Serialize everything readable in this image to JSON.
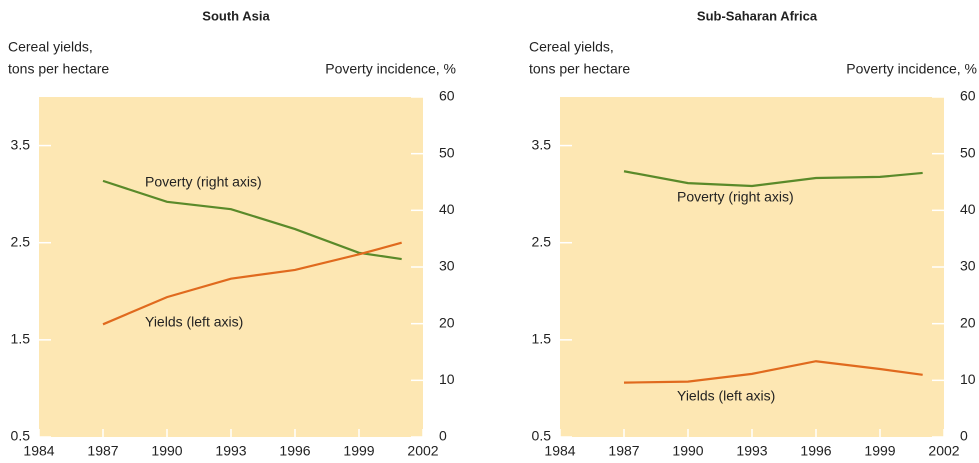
{
  "chart_data": [
    {
      "type": "line",
      "title": "South Asia",
      "ylabel": [
        "Cereal yields,",
        "tons per hectare"
      ],
      "y2label": "Poverty incidence, %",
      "x": [
        1987,
        1990,
        1993,
        1996,
        1999,
        2001
      ],
      "xlim": [
        1984,
        2002
      ],
      "xticks": [
        1984,
        1987,
        1990,
        1993,
        1996,
        1999,
        2002
      ],
      "ylim": [
        0.5,
        4.0
      ],
      "yticks": [
        0.5,
        1.5,
        2.5,
        3.5
      ],
      "y2lim": [
        0,
        60
      ],
      "y2ticks": [
        0,
        10,
        20,
        30,
        40,
        50,
        60
      ],
      "background": "#fde7b3",
      "series": [
        {
          "name": "Poverty (right axis)",
          "color": "#5a8a2a",
          "axis": "y2",
          "values": [
            45.2,
            41.5,
            40.2,
            36.7,
            32.5,
            31.4
          ]
        },
        {
          "name": "Yields (left axis)",
          "color": "#e06a1e",
          "values": [
            1.66,
            1.94,
            2.13,
            2.22,
            2.38,
            2.5
          ]
        }
      ]
    },
    {
      "type": "line",
      "title": "Sub-Saharan Africa",
      "ylabel": [
        "Cereal yields,",
        "tons per hectare"
      ],
      "y2label": "Poverty incidence, %",
      "x": [
        1987,
        1990,
        1993,
        1996,
        1999,
        2001
      ],
      "xlim": [
        1984,
        2002
      ],
      "xticks": [
        1984,
        1987,
        1990,
        1993,
        1996,
        1999,
        2002
      ],
      "ylim": [
        0.5,
        4.0
      ],
      "yticks": [
        0.5,
        1.5,
        2.5,
        3.5
      ],
      "y2lim": [
        0,
        60
      ],
      "y2ticks": [
        0,
        10,
        20,
        30,
        40,
        50,
        60
      ],
      "background": "#fde7b3",
      "series": [
        {
          "name": "Poverty (right axis)",
          "color": "#5a8a2a",
          "axis": "y2",
          "values": [
            46.9,
            44.8,
            44.3,
            45.7,
            45.9,
            46.6
          ]
        },
        {
          "name": "Yields (left axis)",
          "color": "#e06a1e",
          "values": [
            1.06,
            1.07,
            1.15,
            1.28,
            1.2,
            1.14
          ]
        }
      ]
    }
  ]
}
